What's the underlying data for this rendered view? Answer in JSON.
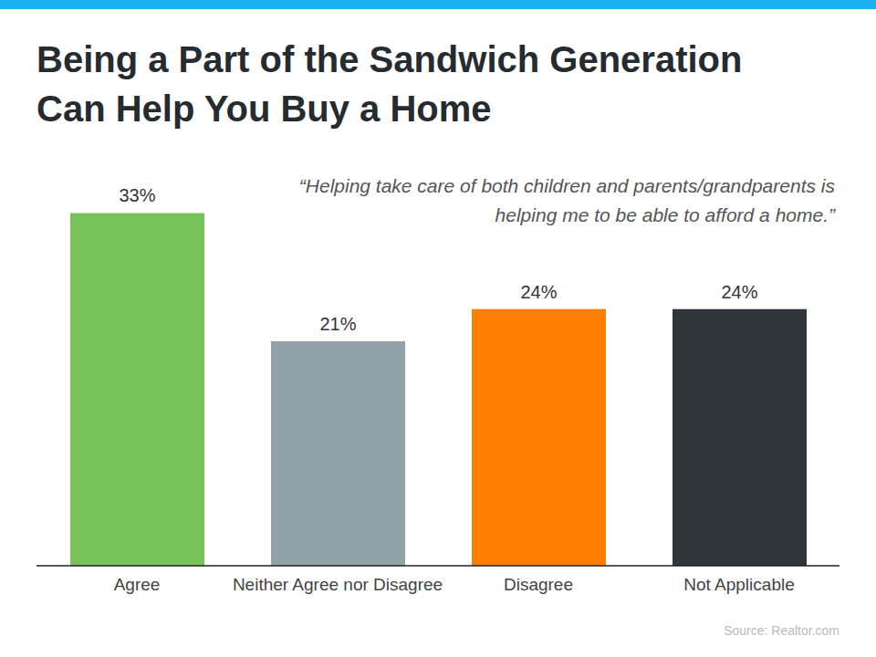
{
  "chart_data": {
    "type": "bar",
    "title": "Being a Part of the Sandwich Generation\nCan Help You Buy a Home",
    "annotation": "“Helping take care of both children and parents/grandparents is\nhelping me to be able to afford a home.”",
    "source": "Source: Realtor.com",
    "categories": [
      "Agree",
      "Neither Agree nor Disagree",
      "Disagree",
      "Not Applicable"
    ],
    "values": [
      33,
      21,
      24,
      24
    ],
    "value_labels": [
      "33%",
      "21%",
      "24%",
      "24%"
    ],
    "colors": [
      "#77c159",
      "#91a3a9",
      "#ff8000",
      "#2e353b"
    ],
    "ylim": [
      0,
      35
    ],
    "data_labels": true,
    "tick_labels": "x",
    "grid": false
  }
}
